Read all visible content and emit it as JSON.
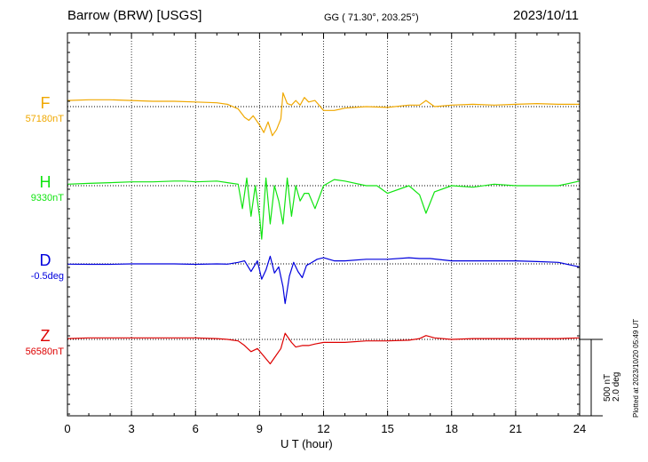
{
  "header": {
    "title": "Barrow (BRW)  [USGS]",
    "coords": "GG ( 71.30°, 203.25°)",
    "date": "2023/10/11"
  },
  "footer_note": "Plotted at 2023/10/20 05:49 UT",
  "scale": {
    "line1": "500 nT",
    "line2": "2.0 deg"
  },
  "chart_data": {
    "type": "line",
    "xlabel": "U T (hour)",
    "xlim": [
      0,
      24
    ],
    "xticks": [
      0,
      3,
      6,
      9,
      12,
      15,
      18,
      21,
      24
    ],
    "grid": true,
    "series": [
      {
        "name": "F",
        "baseline_label": "57180nT",
        "color": "#f0a800",
        "x": [
          0,
          1,
          2,
          3,
          4,
          5,
          6,
          7,
          7.5,
          8,
          8.3,
          8.5,
          8.7,
          9,
          9.2,
          9.4,
          9.6,
          9.8,
          10,
          10.1,
          10.3,
          10.5,
          10.7,
          10.9,
          11.1,
          11.3,
          11.6,
          12,
          12.5,
          13,
          14,
          15,
          16,
          16.5,
          16.8,
          17.2,
          18,
          19,
          20,
          21,
          22,
          23,
          24
        ],
        "y": [
          40,
          45,
          45,
          40,
          35,
          35,
          30,
          25,
          15,
          -15,
          -70,
          -90,
          -60,
          -120,
          -170,
          -100,
          -190,
          -150,
          -80,
          90,
          20,
          10,
          40,
          10,
          60,
          30,
          40,
          -25,
          -25,
          -10,
          0,
          -5,
          10,
          10,
          40,
          0,
          10,
          15,
          10,
          15,
          20,
          15,
          15
        ]
      },
      {
        "name": "H",
        "baseline_label": "9330nT",
        "color": "#11e411",
        "x": [
          0,
          1,
          2,
          3,
          4,
          5,
          5.5,
          6,
          7,
          7.5,
          8,
          8.2,
          8.4,
          8.6,
          8.8,
          9,
          9.1,
          9.3,
          9.5,
          9.7,
          9.9,
          10.1,
          10.3,
          10.5,
          10.7,
          10.9,
          11.1,
          11.3,
          11.6,
          12,
          12.5,
          13,
          14,
          14.5,
          15,
          16,
          16.5,
          16.8,
          17.2,
          18,
          19,
          20,
          21,
          22,
          23,
          24
        ],
        "y": [
          10,
          15,
          20,
          25,
          25,
          30,
          30,
          25,
          30,
          20,
          10,
          -150,
          50,
          -200,
          0,
          -200,
          -350,
          50,
          -250,
          0,
          -100,
          -250,
          50,
          -200,
          0,
          -100,
          -50,
          -50,
          -150,
          0,
          40,
          30,
          0,
          0,
          -50,
          0,
          -60,
          -180,
          -40,
          0,
          -10,
          10,
          0,
          0,
          0,
          30
        ]
      },
      {
        "name": "D",
        "baseline_label": "-0.5deg",
        "color": "#0000dd",
        "x": [
          0,
          1,
          2,
          3,
          4,
          5,
          6,
          7,
          7.5,
          8,
          8.3,
          8.6,
          8.9,
          9.1,
          9.3,
          9.5,
          9.7,
          9.9,
          10.1,
          10.2,
          10.4,
          10.6,
          10.8,
          11.0,
          11.2,
          11.4,
          11.7,
          12,
          12.5,
          13,
          14,
          15,
          16,
          16.5,
          17,
          18,
          19,
          20,
          21,
          22,
          23,
          24
        ],
        "y": [
          -2,
          -3,
          -3,
          0,
          0,
          0,
          -3,
          0,
          -2,
          10,
          20,
          -50,
          20,
          -100,
          -40,
          50,
          -60,
          -20,
          -150,
          -260,
          -80,
          10,
          -50,
          -90,
          -10,
          5,
          30,
          40,
          20,
          20,
          30,
          30,
          40,
          35,
          35,
          20,
          20,
          20,
          20,
          15,
          10,
          -20
        ]
      },
      {
        "name": "Z",
        "baseline_label": "56580nT",
        "color": "#dd0000",
        "x": [
          0,
          1,
          2,
          3,
          4,
          5,
          6,
          7,
          7.5,
          8,
          8.3,
          8.6,
          8.9,
          9.2,
          9.5,
          9.7,
          10,
          10.2,
          10.5,
          10.7,
          11,
          11.3,
          11.6,
          12,
          12.5,
          13,
          14,
          15,
          16,
          16.5,
          16.8,
          17.2,
          18,
          19,
          20,
          21,
          22,
          23,
          24
        ],
        "y": [
          5,
          10,
          10,
          10,
          10,
          10,
          10,
          5,
          0,
          -10,
          -40,
          -80,
          -60,
          -110,
          -160,
          -120,
          -60,
          40,
          -20,
          -50,
          -40,
          -40,
          -30,
          -20,
          -20,
          -20,
          -10,
          -10,
          -5,
          5,
          25,
          10,
          0,
          5,
          5,
          5,
          5,
          5,
          10
        ]
      }
    ]
  }
}
